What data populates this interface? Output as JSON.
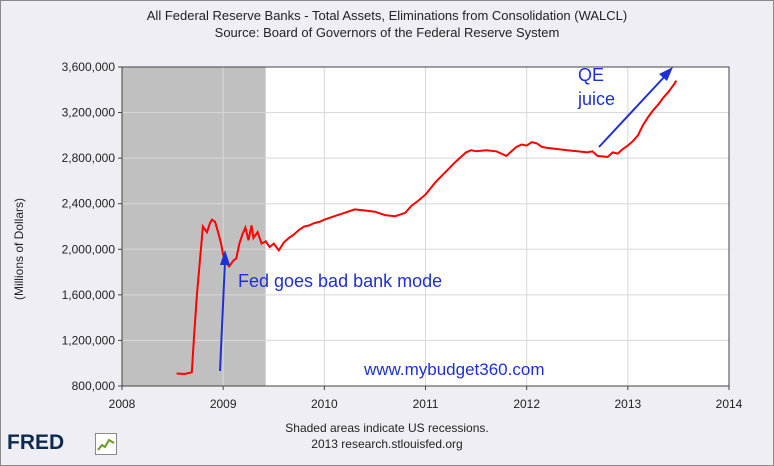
{
  "chart_data": {
    "type": "line",
    "title": "All Federal Reserve Banks - Total Assets, Eliminations from Consolidation (WALCL)",
    "subtitle": "Source: Board of Governors of the Federal Reserve System",
    "ylabel": "(Millions of Dollars)",
    "xlabel": "",
    "xlim": [
      2008,
      2014
    ],
    "ylim": [
      800000,
      3600000
    ],
    "x_ticks": [
      "2008",
      "2009",
      "2010",
      "2011",
      "2012",
      "2013",
      "2014"
    ],
    "y_ticks": [
      "800,000",
      "1,200,000",
      "1,600,000",
      "2,000,000",
      "2,400,000",
      "2,800,000",
      "3,200,000",
      "3,600,000"
    ],
    "grid": true,
    "recession_shading": {
      "start": 2008.0,
      "end": 2009.42
    },
    "series": [
      {
        "color": "#ff0000",
        "x": [
          2008.54,
          2008.62,
          2008.69,
          2008.71,
          2008.74,
          2008.77,
          2008.8,
          2008.84,
          2008.87,
          2008.89,
          2008.92,
          2008.95,
          2008.98,
          2009.0,
          2009.03,
          2009.06,
          2009.1,
          2009.13,
          2009.16,
          2009.19,
          2009.22,
          2009.25,
          2009.28,
          2009.3,
          2009.34,
          2009.38,
          2009.42,
          2009.46,
          2009.5,
          2009.55,
          2009.6,
          2009.65,
          2009.7,
          2009.75,
          2009.8,
          2009.85,
          2009.9,
          2009.95,
          2010.0,
          2010.1,
          2010.2,
          2010.3,
          2010.4,
          2010.5,
          2010.6,
          2010.7,
          2010.8,
          2010.86,
          2010.92,
          2011.0,
          2011.1,
          2011.2,
          2011.3,
          2011.4,
          2011.45,
          2011.5,
          2011.6,
          2011.7,
          2011.75,
          2011.8,
          2011.85,
          2011.9,
          2011.95,
          2012.0,
          2012.05,
          2012.1,
          2012.15,
          2012.2,
          2012.3,
          2012.4,
          2012.5,
          2012.6,
          2012.65,
          2012.7,
          2012.8,
          2012.85,
          2012.9,
          2012.95,
          2013.0,
          2013.05,
          2013.1,
          2013.15,
          2013.2,
          2013.25,
          2013.3,
          2013.35,
          2013.4,
          2013.45,
          2013.48
        ],
        "y": [
          910000,
          905000,
          920000,
          1200000,
          1600000,
          1900000,
          2200000,
          2150000,
          2230000,
          2260000,
          2240000,
          2150000,
          2050000,
          1950000,
          1880000,
          1850000,
          1900000,
          1920000,
          2050000,
          2130000,
          2190000,
          2080000,
          2210000,
          2100000,
          2150000,
          2050000,
          2070000,
          2020000,
          2050000,
          1990000,
          2060000,
          2100000,
          2130000,
          2170000,
          2200000,
          2210000,
          2230000,
          2240000,
          2260000,
          2290000,
          2320000,
          2350000,
          2340000,
          2330000,
          2300000,
          2290000,
          2320000,
          2380000,
          2420000,
          2480000,
          2590000,
          2680000,
          2770000,
          2850000,
          2870000,
          2860000,
          2870000,
          2860000,
          2840000,
          2820000,
          2860000,
          2900000,
          2920000,
          2910000,
          2940000,
          2930000,
          2900000,
          2890000,
          2880000,
          2870000,
          2860000,
          2850000,
          2860000,
          2820000,
          2810000,
          2850000,
          2840000,
          2880000,
          2910000,
          2950000,
          3000000,
          3090000,
          3160000,
          3220000,
          3270000,
          3330000,
          3380000,
          3440000,
          3480000
        ]
      }
    ],
    "annotations": [
      {
        "text": "Fed goes bad bank mode",
        "color": "#1f2fd6"
      },
      {
        "text": "QE",
        "color": "#1f2fd6"
      },
      {
        "text": "juice",
        "color": "#1f2fd6"
      },
      {
        "text": "www.mybudget360.com",
        "color": "#1f2fd6"
      }
    ],
    "footer": [
      "Shaded areas indicate US recessions.",
      "2013 research.stlouisfed.org"
    ],
    "logo_text": "FRED",
    "colors": {
      "line": "#ff0000",
      "recession": "#c0c0c0",
      "annotation": "#1f2fd6",
      "background": "#eeeef4"
    }
  }
}
